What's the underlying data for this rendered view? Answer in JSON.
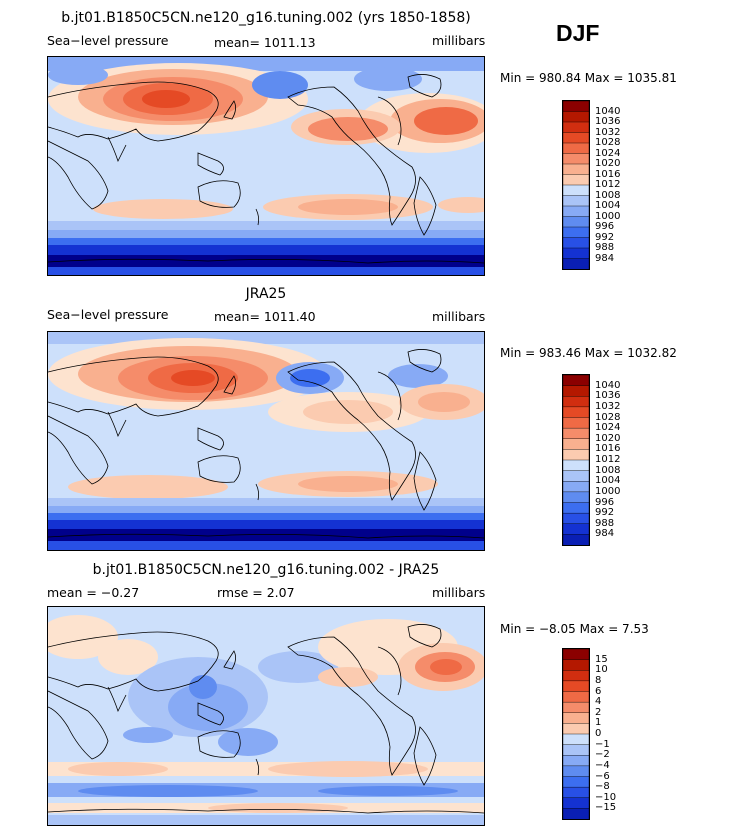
{
  "season": "DJF",
  "colors": {
    "blues": [
      "#00008b",
      "#0a1fb4",
      "#1432d2",
      "#2850e6",
      "#3c6ef0",
      "#5f8cf0",
      "#87aaf5",
      "#aac4f7",
      "#cde0fb"
    ],
    "reds": [
      "#fde3cf",
      "#fbcbb0",
      "#f9b08f",
      "#f58c6a",
      "#ef6a45",
      "#e54a25",
      "#d12e10",
      "#b41800",
      "#8b0000"
    ],
    "land_outline": "#000000"
  },
  "chart_data": [
    {
      "type": "heatmap",
      "title": "b.jt01.B1850C5CN.ne120_g16.tuning.002 (yrs 1850-1858)",
      "field": "Sea−level pressure",
      "mean_label": "mean= 1011.13",
      "units": "millibars",
      "min_max_label": "Min = 980.84 Max = 1035.81",
      "min": 980.84,
      "max": 1035.81,
      "mean": 1011.13,
      "colorbar_levels": [
        "1040",
        "1036",
        "1032",
        "1028",
        "1024",
        "1020",
        "1016",
        "1012",
        "1008",
        "1004",
        "1000",
        "996",
        "992",
        "988",
        "984"
      ],
      "domain": {
        "lon_range": [
          0,
          360
        ],
        "lat_range": [
          -90,
          90
        ]
      }
    },
    {
      "type": "heatmap",
      "title": "JRA25",
      "field": "Sea−level pressure",
      "mean_label": "mean= 1011.40",
      "units": "millibars",
      "min_max_label": "Min = 983.46 Max = 1032.82",
      "min": 983.46,
      "max": 1032.82,
      "mean": 1011.4,
      "colorbar_levels": [
        "1040",
        "1036",
        "1032",
        "1028",
        "1024",
        "1020",
        "1016",
        "1012",
        "1008",
        "1004",
        "1000",
        "996",
        "992",
        "988",
        "984"
      ],
      "domain": {
        "lon_range": [
          0,
          360
        ],
        "lat_range": [
          -90,
          90
        ]
      }
    },
    {
      "type": "heatmap",
      "title": "b.jt01.B1850C5CN.ne120_g16.tuning.002 - JRA25",
      "mean_label": "mean =   −0.27",
      "rmse_label": "rmse =    2.07",
      "units": "millibars",
      "min_max_label": "Min =  −8.05 Max =    7.53",
      "min": -8.05,
      "max": 7.53,
      "mean": -0.27,
      "rmse": 2.07,
      "colorbar_levels": [
        "15",
        "10",
        "8",
        "6",
        "4",
        "2",
        "1",
        "0",
        "−1",
        "−2",
        "−4",
        "−6",
        "−8",
        "−10",
        "−15"
      ],
      "domain": {
        "lon_range": [
          0,
          360
        ],
        "lat_range": [
          -90,
          90
        ]
      }
    }
  ]
}
